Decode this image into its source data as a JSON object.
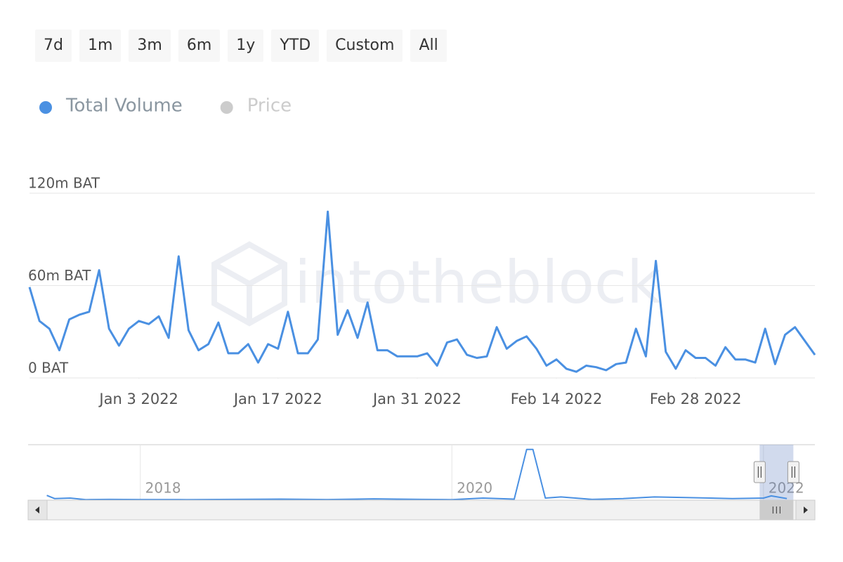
{
  "range_buttons": [
    "7d",
    "1m",
    "3m",
    "6m",
    "1y",
    "YTD",
    "Custom",
    "All"
  ],
  "chart_data": [
    {
      "type": "line",
      "watermark": "intotheblock",
      "series": [
        {
          "name": "Total Volume",
          "color": "#4a90e2",
          "values": [
            59,
            37,
            32,
            18,
            38,
            41,
            43,
            70,
            32,
            21,
            32,
            37,
            35,
            40,
            26,
            79,
            31,
            18,
            22,
            36,
            16,
            16,
            22,
            10,
            22,
            19,
            43,
            16,
            16,
            25,
            108,
            28,
            44,
            26,
            49,
            18,
            18,
            14,
            14,
            14,
            16,
            8,
            23,
            25,
            15,
            13,
            14,
            33,
            19,
            24,
            27,
            19,
            8,
            12,
            6,
            4,
            8,
            7,
            5,
            9,
            10,
            32,
            14,
            76,
            17,
            6,
            18,
            13,
            13,
            8,
            20,
            12,
            12,
            10,
            32,
            9,
            28,
            33,
            24,
            15
          ]
        }
      ],
      "hidden_series": [
        {
          "name": "Price",
          "color": "#cccccc"
        }
      ],
      "x": [
        "2021-12-23",
        "2021-12-24",
        "2021-12-25",
        "2021-12-26",
        "2021-12-27",
        "2021-12-28",
        "2021-12-29",
        "2021-12-30",
        "2021-12-31",
        "2022-01-01",
        "2022-01-02",
        "2022-01-03",
        "2022-01-04",
        "2022-01-05",
        "2022-01-06",
        "2022-01-07",
        "2022-01-08",
        "2022-01-09",
        "2022-01-10",
        "2022-01-11",
        "2022-01-12",
        "2022-01-13",
        "2022-01-14",
        "2022-01-15",
        "2022-01-16",
        "2022-01-17",
        "2022-01-18",
        "2022-01-19",
        "2022-01-20",
        "2022-01-21",
        "2022-01-22",
        "2022-01-23",
        "2022-01-24",
        "2022-01-25",
        "2022-01-26",
        "2022-01-27",
        "2022-01-28",
        "2022-01-29",
        "2022-01-30",
        "2022-01-31",
        "2022-02-01",
        "2022-02-02",
        "2022-02-03",
        "2022-02-04",
        "2022-02-05",
        "2022-02-06",
        "2022-02-07",
        "2022-02-08",
        "2022-02-09",
        "2022-02-10",
        "2022-02-11",
        "2022-02-12",
        "2022-02-13",
        "2022-02-14",
        "2022-02-15",
        "2022-02-16",
        "2022-02-17",
        "2022-02-18",
        "2022-02-19",
        "2022-02-20",
        "2022-02-21",
        "2022-02-22",
        "2022-02-23",
        "2022-02-24",
        "2022-02-25",
        "2022-02-26",
        "2022-02-27",
        "2022-02-28",
        "2022-03-01",
        "2022-03-02",
        "2022-03-03",
        "2022-03-04",
        "2022-03-05",
        "2022-03-06",
        "2022-03-07",
        "2022-03-08",
        "2022-03-09",
        "2022-03-10",
        "2022-03-11",
        "2022-03-12"
      ],
      "xlim": [
        "2021-12-23",
        "2022-03-12"
      ],
      "xticks": [
        {
          "value": "2022-01-03",
          "label": "Jan 3 2022"
        },
        {
          "value": "2022-01-17",
          "label": "Jan 17 2022"
        },
        {
          "value": "2022-01-31",
          "label": "Jan 31 2022"
        },
        {
          "value": "2022-02-14",
          "label": "Feb 14 2022"
        },
        {
          "value": "2022-02-28",
          "label": "Feb 28 2022"
        }
      ],
      "ylim": [
        0,
        120
      ],
      "yticks": [
        {
          "value": 0,
          "label": "0 BAT"
        },
        {
          "value": 60,
          "label": "60m BAT"
        },
        {
          "value": 120,
          "label": "120m BAT"
        }
      ],
      "grid": true
    },
    {
      "type": "line",
      "series": [
        {
          "name": "Total Volume",
          "color": "#4a90e2",
          "values": [
            90,
            30,
            40,
            10,
            15,
            12,
            10,
            14,
            20,
            12,
            25,
            15,
            10,
            40,
            20,
            950,
            950,
            40,
            60,
            15,
            30,
            60,
            50,
            30,
            40,
            80,
            30
          ]
        }
      ],
      "x": [
        2017.4,
        2017.45,
        2017.55,
        2017.65,
        2017.8,
        2018.0,
        2018.3,
        2018.6,
        2018.9,
        2019.2,
        2019.5,
        2019.8,
        2020.0,
        2020.2,
        2020.4,
        2020.48,
        2020.52,
        2020.6,
        2020.7,
        2020.9,
        2021.1,
        2021.3,
        2021.5,
        2021.8,
        2022.0,
        2022.05,
        2022.15
      ],
      "xlim": [
        2017.28,
        2022.33
      ],
      "xticks": [
        2018,
        2020,
        2022
      ],
      "ylim": [
        0,
        1000
      ]
    }
  ]
}
